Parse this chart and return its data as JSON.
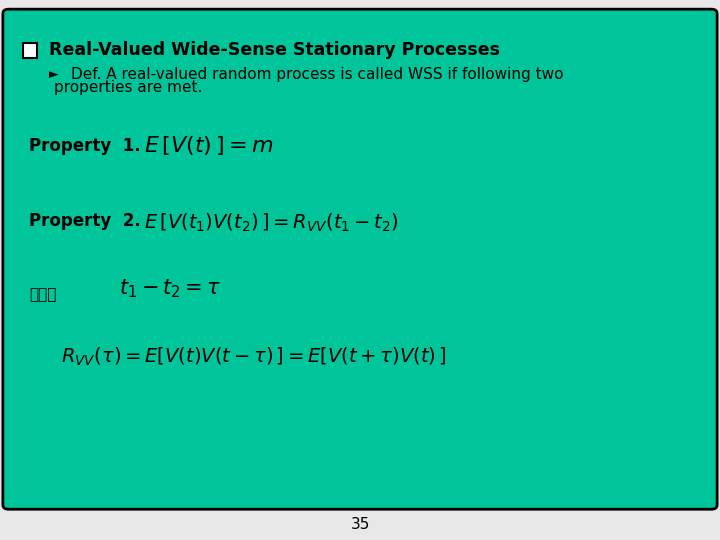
{
  "bg_color": "#00C49A",
  "slide_bg": "#e8e8e8",
  "border_color": "#000000",
  "title": "Real-Valued Wide-Sense Stationary Processes",
  "subtitle_line1": "Def. A real-valued random process is called WSS if following two",
  "subtitle_line2": "properties are met.",
  "property1_label": "Property  1.",
  "property1_formula": "$E\\,[V(t)\\,] = m$",
  "property2_label": "Property  2.",
  "property2_formula": "$E\\,[V(t_1)V(t_2)\\,] = R_{VV}(t_1 - t_2)$",
  "darase_label": "따라서",
  "therefore_formula": "$t_1 - t_2 = \\tau$",
  "final_formula": "$R_{VV}(\\tau) = E[V(t)V(t-\\tau)\\,] = E[V(t+\\tau)V(t)\\,]$",
  "page_number": "35",
  "title_fontsize": 12.5,
  "body_fontsize": 11,
  "formula_fontsize": 14,
  "label_fontsize": 12
}
